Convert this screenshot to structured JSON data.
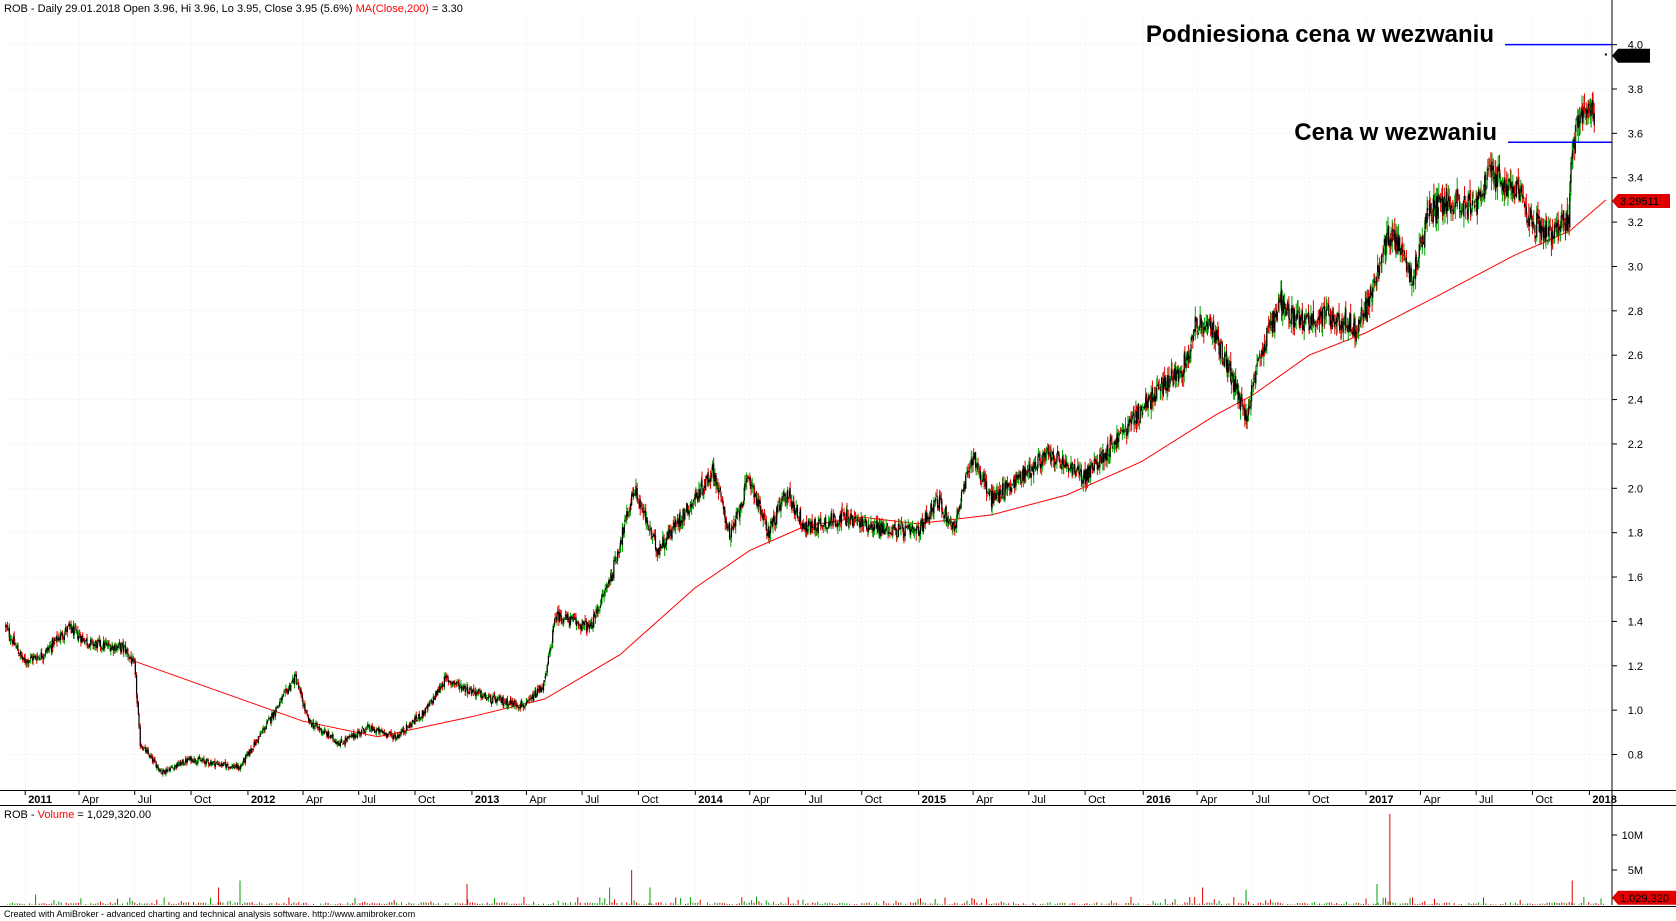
{
  "header": {
    "ticker": "ROB",
    "info": " - Daily 29.01.2018 Open 3.96, Hi 3.96, Lo 3.95, Close 3.95 (5.6%) ",
    "ma_label": "MA(Close,200)",
    "ma_value": " = 3.30"
  },
  "volume_header": {
    "ticker": "ROB",
    "sep": " - ",
    "label": "Volume",
    "value": " = 1,029,320.00"
  },
  "footer": "Created with AmiBroker - advanced charting and technical analysis software. http://www.amibroker.com",
  "annotations": {
    "raised_price": "Podniesiona cena w wezwaniu",
    "tender_price": "Cena w wezwaniu"
  },
  "colors": {
    "up": "#00a000",
    "down": "#e00000",
    "candle_body": "#000000",
    "ma": "#ff0000",
    "annotation_line": "#0000ff",
    "grid": "#d0d0d0"
  },
  "chart_data": [
    {
      "type": "candlestick",
      "symbol": "ROB",
      "period": "Daily",
      "title": "ROB - Daily 29.01.2018 Open 3.96, Hi 3.96, Lo 3.95, Close 3.95 (5.6%) MA(Close,200) = 3.30",
      "y_ticks": [
        0.8,
        1.0,
        1.2,
        1.4,
        1.6,
        1.8,
        2.0,
        2.2,
        2.4,
        2.6,
        2.8,
        3.0,
        3.2,
        3.4,
        3.6,
        3.8,
        4.0
      ],
      "ylim": [
        0.64,
        4.12
      ],
      "x_ticks": [
        {
          "label": "2011",
          "bold": true,
          "date": "2011-01-03"
        },
        {
          "label": "Apr",
          "date": "2011-04-01"
        },
        {
          "label": "Jul",
          "date": "2011-07-01"
        },
        {
          "label": "Oct",
          "date": "2011-10-01"
        },
        {
          "label": "2012",
          "bold": true,
          "date": "2012-01-02"
        },
        {
          "label": "Apr",
          "date": "2012-04-01"
        },
        {
          "label": "Jul",
          "date": "2012-07-01"
        },
        {
          "label": "Oct",
          "date": "2012-10-01"
        },
        {
          "label": "2013",
          "bold": true,
          "date": "2013-01-02"
        },
        {
          "label": "Apr",
          "date": "2013-04-01"
        },
        {
          "label": "Jul",
          "date": "2013-07-01"
        },
        {
          "label": "Oct",
          "date": "2013-10-01"
        },
        {
          "label": "2014",
          "bold": true,
          "date": "2014-01-02"
        },
        {
          "label": "Apr",
          "date": "2014-04-01"
        },
        {
          "label": "Jul",
          "date": "2014-07-01"
        },
        {
          "label": "Oct",
          "date": "2014-10-01"
        },
        {
          "label": "2015",
          "bold": true,
          "date": "2015-01-02"
        },
        {
          "label": "Apr",
          "date": "2015-04-01"
        },
        {
          "label": "Jul",
          "date": "2015-07-01"
        },
        {
          "label": "Oct",
          "date": "2015-10-01"
        },
        {
          "label": "2016",
          "bold": true,
          "date": "2016-01-04"
        },
        {
          "label": "Apr",
          "date": "2016-04-01"
        },
        {
          "label": "Jul",
          "date": "2016-07-01"
        },
        {
          "label": "Oct",
          "date": "2016-10-01"
        },
        {
          "label": "2017",
          "bold": true,
          "date": "2017-01-02"
        },
        {
          "label": "Apr",
          "date": "2017-04-01"
        },
        {
          "label": "Jul",
          "date": "2017-07-01"
        },
        {
          "label": "Oct",
          "date": "2017-10-01"
        },
        {
          "label": "2018",
          "bold": true,
          "date": "2018-01-02"
        }
      ],
      "price_path": [
        {
          "date": "2010-12-01",
          "close": 1.38
        },
        {
          "date": "2011-01-01",
          "close": 1.22
        },
        {
          "date": "2011-02-01",
          "close": 1.25
        },
        {
          "date": "2011-03-15",
          "close": 1.37
        },
        {
          "date": "2011-04-20",
          "close": 1.3
        },
        {
          "date": "2011-06-15",
          "close": 1.28
        },
        {
          "date": "2011-07-01",
          "close": 1.2
        },
        {
          "date": "2011-07-10",
          "close": 0.85
        },
        {
          "date": "2011-08-15",
          "close": 0.72
        },
        {
          "date": "2011-10-01",
          "close": 0.78
        },
        {
          "date": "2011-12-20",
          "close": 0.74
        },
        {
          "date": "2012-02-01",
          "close": 0.93
        },
        {
          "date": "2012-03-20",
          "close": 1.15
        },
        {
          "date": "2012-04-10",
          "close": 0.95
        },
        {
          "date": "2012-06-01",
          "close": 0.85
        },
        {
          "date": "2012-07-15",
          "close": 0.92
        },
        {
          "date": "2012-09-01",
          "close": 0.88
        },
        {
          "date": "2012-10-20",
          "close": 1.0
        },
        {
          "date": "2012-11-20",
          "close": 1.14
        },
        {
          "date": "2013-02-01",
          "close": 1.05
        },
        {
          "date": "2013-04-01",
          "close": 1.02
        },
        {
          "date": "2013-05-01",
          "close": 1.12
        },
        {
          "date": "2013-05-20",
          "close": 1.43
        },
        {
          "date": "2013-07-15",
          "close": 1.37
        },
        {
          "date": "2013-08-20",
          "close": 1.62
        },
        {
          "date": "2013-09-25",
          "close": 2.0
        },
        {
          "date": "2013-11-01",
          "close": 1.72
        },
        {
          "date": "2014-01-01",
          "close": 1.95
        },
        {
          "date": "2014-02-01",
          "close": 2.08
        },
        {
          "date": "2014-03-01",
          "close": 1.78
        },
        {
          "date": "2014-04-01",
          "close": 2.05
        },
        {
          "date": "2014-05-01",
          "close": 1.8
        },
        {
          "date": "2014-06-01",
          "close": 1.98
        },
        {
          "date": "2014-07-01",
          "close": 1.82
        },
        {
          "date": "2014-09-01",
          "close": 1.87
        },
        {
          "date": "2014-11-01",
          "close": 1.82
        },
        {
          "date": "2015-01-01",
          "close": 1.8
        },
        {
          "date": "2015-02-01",
          "close": 1.95
        },
        {
          "date": "2015-03-01",
          "close": 1.82
        },
        {
          "date": "2015-04-01",
          "close": 2.15
        },
        {
          "date": "2015-05-01",
          "close": 1.95
        },
        {
          "date": "2015-07-01",
          "close": 2.08
        },
        {
          "date": "2015-08-01",
          "close": 2.15
        },
        {
          "date": "2015-10-01",
          "close": 2.05
        },
        {
          "date": "2015-12-01",
          "close": 2.25
        },
        {
          "date": "2016-02-01",
          "close": 2.45
        },
        {
          "date": "2016-03-10",
          "close": 2.55
        },
        {
          "date": "2016-04-01",
          "close": 2.75
        },
        {
          "date": "2016-05-01",
          "close": 2.7
        },
        {
          "date": "2016-06-20",
          "close": 2.32
        },
        {
          "date": "2016-07-15",
          "close": 2.6
        },
        {
          "date": "2016-08-15",
          "close": 2.85
        },
        {
          "date": "2016-09-15",
          "close": 2.75
        },
        {
          "date": "2016-11-01",
          "close": 2.78
        },
        {
          "date": "2016-12-20",
          "close": 2.72
        },
        {
          "date": "2017-01-15",
          "close": 2.9
        },
        {
          "date": "2017-02-10",
          "close": 3.15
        },
        {
          "date": "2017-03-01",
          "close": 3.1
        },
        {
          "date": "2017-03-20",
          "close": 2.95
        },
        {
          "date": "2017-04-15",
          "close": 3.25
        },
        {
          "date": "2017-05-20",
          "close": 3.3
        },
        {
          "date": "2017-07-01",
          "close": 3.28
        },
        {
          "date": "2017-07-25",
          "close": 3.42
        },
        {
          "date": "2017-09-01",
          "close": 3.35
        },
        {
          "date": "2017-10-01",
          "close": 3.2
        },
        {
          "date": "2017-11-01",
          "close": 3.15
        },
        {
          "date": "2017-11-30",
          "close": 3.2
        },
        {
          "date": "2017-12-05",
          "close": 3.53
        },
        {
          "date": "2017-12-20",
          "close": 3.7
        },
        {
          "date": "2018-01-10",
          "close": 3.7
        }
      ],
      "ma_series": {
        "name": "MA(Close,200)",
        "points": [
          {
            "date": "2011-07-01",
            "value": 1.22
          },
          {
            "date": "2012-04-01",
            "value": 0.95
          },
          {
            "date": "2012-08-01",
            "value": 0.88
          },
          {
            "date": "2013-01-01",
            "value": 0.97
          },
          {
            "date": "2013-05-01",
            "value": 1.05
          },
          {
            "date": "2013-09-01",
            "value": 1.25
          },
          {
            "date": "2014-01-01",
            "value": 1.55
          },
          {
            "date": "2014-04-01",
            "value": 1.72
          },
          {
            "date": "2014-07-01",
            "value": 1.83
          },
          {
            "date": "2014-10-01",
            "value": 1.87
          },
          {
            "date": "2015-01-01",
            "value": 1.84
          },
          {
            "date": "2015-05-01",
            "value": 1.88
          },
          {
            "date": "2015-09-01",
            "value": 1.97
          },
          {
            "date": "2016-01-01",
            "value": 2.12
          },
          {
            "date": "2016-05-01",
            "value": 2.33
          },
          {
            "date": "2016-07-01",
            "value": 2.42
          },
          {
            "date": "2016-10-01",
            "value": 2.6
          },
          {
            "date": "2017-01-01",
            "value": 2.7
          },
          {
            "date": "2017-05-01",
            "value": 2.87
          },
          {
            "date": "2017-09-01",
            "value": 3.05
          },
          {
            "date": "2017-12-01",
            "value": 3.16
          },
          {
            "date": "2018-01-29",
            "value": 3.3
          }
        ]
      },
      "last_close": 3.95,
      "last_close_label": "3.95",
      "ma_last_label": "3.29511",
      "annotation_levels": [
        {
          "label": "Podniesiona cena w wezwaniu",
          "price": 4.0
        },
        {
          "label": "Cena w wezwaniu",
          "price": 3.56
        }
      ]
    },
    {
      "type": "bar",
      "name": "Volume",
      "y_ticks": [
        {
          "label": "5M",
          "value": 5000000
        },
        {
          "label": "10M",
          "value": 10000000
        }
      ],
      "ylim": [
        0,
        14000000
      ],
      "last_value": 1029320,
      "last_value_label": "1,029,320",
      "spikes": [
        {
          "date": "2011-01-20",
          "value": 1500000
        },
        {
          "date": "2011-11-15",
          "value": 2500000
        },
        {
          "date": "2011-12-20",
          "value": 3500000
        },
        {
          "date": "2012-12-25",
          "value": 3000000
        },
        {
          "date": "2013-08-15",
          "value": 2500000
        },
        {
          "date": "2013-09-20",
          "value": 5000000
        },
        {
          "date": "2013-10-20",
          "value": 2500000
        },
        {
          "date": "2016-04-10",
          "value": 2500000
        },
        {
          "date": "2016-06-20",
          "value": 2200000
        },
        {
          "date": "2017-02-10",
          "value": 13000000
        },
        {
          "date": "2017-01-20",
          "value": 3000000
        },
        {
          "date": "2017-12-05",
          "value": 3500000
        }
      ]
    }
  ]
}
